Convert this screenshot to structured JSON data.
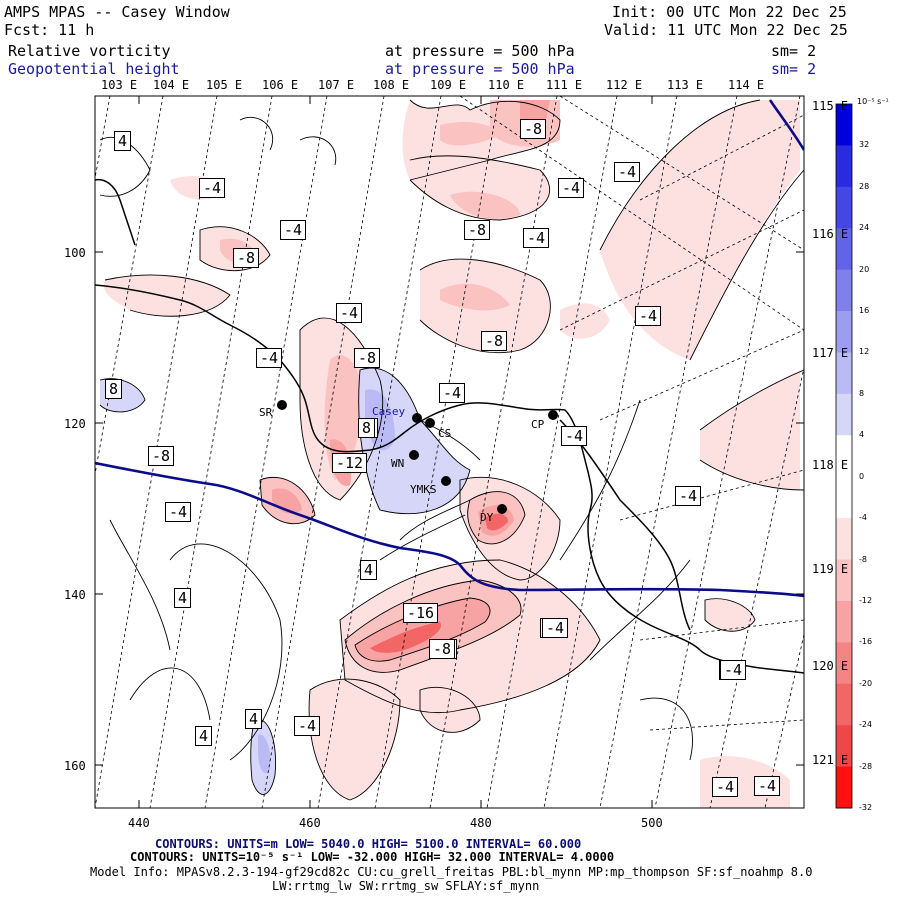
{
  "header": {
    "title": "AMPS MPAS -- Casey Window",
    "forecast": "Fcst:    11 h",
    "init": "Init: 00 UTC Mon 22 Dec 25",
    "valid": "Valid: 11 UTC Mon 22 Dec 25",
    "field1": {
      "name": "Relative vorticity",
      "level": "at pressure =  500 hPa",
      "smooth": "sm= 2"
    },
    "field2": {
      "name": "Geopotential height",
      "level": "at pressure =  500 hPa",
      "smooth": "sm= 2"
    }
  },
  "longitude_labels": [
    "103 E",
    "104 E",
    "105 E",
    "106 E",
    "107 E",
    "108 E",
    "109 E",
    "110 E",
    "111 E",
    "112 E",
    "113 E",
    "114 E"
  ],
  "right_labels": [
    "115 E",
    "116 E",
    "117 E",
    "118 E",
    "119 E",
    "120 E",
    "121 E"
  ],
  "y_axis_labels": [
    "100",
    "120",
    "140",
    "160"
  ],
  "x_axis_labels": [
    "440",
    "460",
    "480",
    "500"
  ],
  "contour_labels": [
    "4",
    "-4",
    "-4",
    "-8",
    "-4",
    "-8",
    "-4",
    "-4",
    "-8",
    "-4",
    "-8",
    "-4",
    "-4",
    "-4",
    "-8",
    "-4",
    "8",
    "4",
    "-8",
    "-4",
    "8",
    "-12",
    "-8",
    "-4",
    "-4",
    "4",
    "-16",
    "-4",
    "4",
    "-8",
    "4",
    "-4",
    "4",
    "-4",
    "-4",
    "-4",
    "-4"
  ],
  "stations": [
    "SR",
    "Casey",
    "CS",
    "WN",
    "YMKS",
    "DY",
    "CP"
  ],
  "colorbar": {
    "unit": "10⁻⁵ s⁻¹",
    "ticks": [
      "32",
      "28",
      "24",
      "20",
      "16",
      "12",
      "8",
      "4",
      "0",
      "-4",
      "-8",
      "-12",
      "-16",
      "-20",
      "-24",
      "-28",
      "-32"
    ],
    "colors": [
      "#0000dd",
      "#2a2ae0",
      "#4646e4",
      "#6363e8",
      "#8080ec",
      "#9d9df0",
      "#babaf4",
      "#d6d6f8",
      "#ffffff",
      "#ffffff",
      "#fde0e0",
      "#fbc2c2",
      "#f8a3a3",
      "#f58585",
      "#f26666",
      "#ef4747",
      "#ff1111"
    ]
  },
  "footer": {
    "line1": "CONTOURS:  UNITS=m  LOW=  5040.0          HIGH=  5100.0          INTERVAL=   60.000",
    "line2": "CONTOURS:  UNITS=10⁻⁵ s⁻¹  LOW= -32.000          HIGH=  32.000          INTERVAL=   4.0000",
    "line3": "Model Info: MPASv8.2.3-194-gf29cd82c CU:cu_grell_freitas PBL:bl_mynn MP:mp_thompson SF:sf_noahmp 8.0",
    "line4": "LW:rrtmg_lw SW:rrtmg_sw SFLAY:sf_mynn"
  }
}
